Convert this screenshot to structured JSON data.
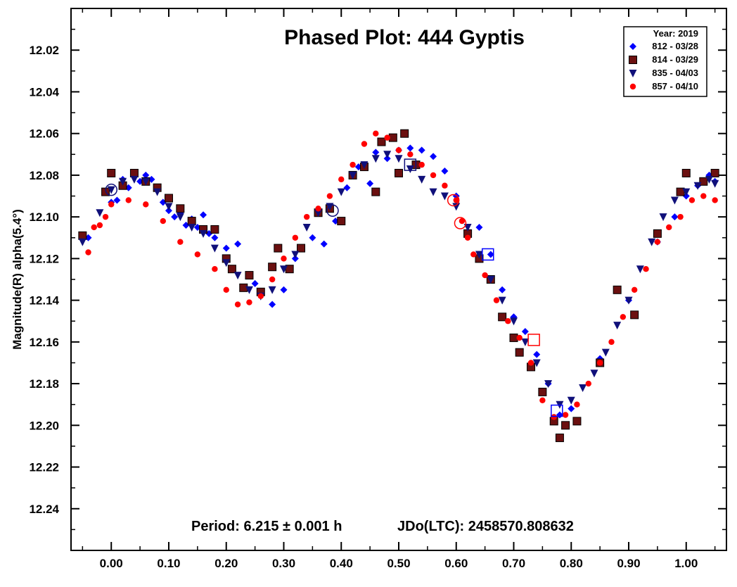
{
  "chart_data": {
    "type": "scatter",
    "title": "Phased Plot: 444 Gyptis",
    "ylabel": "Magnitude(R) alpha(5.4°)",
    "xlabel": "",
    "xlim": [
      -0.07,
      1.07
    ],
    "ylim": [
      12.26,
      12.0
    ],
    "y_inverted": true,
    "x_ticks": [
      "0.00",
      "0.10",
      "0.20",
      "0.30",
      "0.40",
      "0.50",
      "0.60",
      "0.70",
      "0.80",
      "0.90",
      "1.00"
    ],
    "x_tick_values": [
      0,
      0.1,
      0.2,
      0.3,
      0.4,
      0.5,
      0.6,
      0.7,
      0.8,
      0.9,
      1.0
    ],
    "y_ticks": [
      "12.02",
      "12.04",
      "12.06",
      "12.08",
      "12.10",
      "12.12",
      "12.14",
      "12.16",
      "12.18",
      "12.20",
      "12.22",
      "12.24"
    ],
    "y_tick_values": [
      12.02,
      12.04,
      12.06,
      12.08,
      12.1,
      12.12,
      12.14,
      12.16,
      12.18,
      12.2,
      12.22,
      12.24
    ],
    "grid": false,
    "legend_position": "top-right",
    "legend_title": "Year: 2019",
    "footer_period": "Period: 6.215 ± 0.001 h",
    "footer_jd": "JDo(LTC): 2458570.808632",
    "series": [
      {
        "name": "812 - 03/28",
        "marker": "diamond",
        "color": "#0000ff",
        "x": [
          -0.04,
          0.0,
          0.01,
          0.02,
          0.03,
          0.04,
          0.05,
          0.06,
          0.07,
          0.08,
          0.09,
          0.1,
          0.11,
          0.12,
          0.13,
          0.14,
          0.15,
          0.16,
          0.17,
          0.18,
          0.2,
          0.22,
          0.25,
          0.28,
          0.3,
          0.32,
          0.35,
          0.37,
          0.39,
          0.41,
          0.43,
          0.45,
          0.46,
          0.48,
          0.5,
          0.52,
          0.54,
          0.56,
          0.58,
          0.6,
          0.64,
          0.66,
          0.68,
          0.7,
          0.72,
          0.74,
          0.76,
          0.78,
          0.8,
          0.85,
          0.9,
          0.95,
          0.98,
          1.0,
          1.02,
          1.04,
          1.05
        ],
        "y": [
          12.11,
          12.093,
          12.092,
          12.082,
          12.086,
          12.08,
          12.083,
          12.08,
          12.082,
          12.087,
          12.093,
          12.097,
          12.1,
          12.098,
          12.104,
          12.101,
          12.105,
          12.099,
          12.108,
          12.11,
          12.115,
          12.113,
          12.132,
          12.142,
          12.135,
          12.12,
          12.11,
          12.113,
          12.102,
          12.086,
          12.076,
          12.084,
          12.069,
          12.072,
          12.068,
          12.067,
          12.068,
          12.071,
          12.078,
          12.09,
          12.105,
          12.118,
          12.135,
          12.148,
          12.155,
          12.166,
          12.18,
          12.195,
          12.192,
          12.168,
          12.14,
          12.112,
          12.1,
          12.09,
          12.085,
          12.08,
          12.083
        ]
      },
      {
        "name": "814 - 03/29",
        "marker": "square",
        "color": "#6b1010",
        "x": [
          -0.05,
          -0.01,
          0.0,
          0.02,
          0.04,
          0.06,
          0.08,
          0.1,
          0.12,
          0.14,
          0.16,
          0.18,
          0.2,
          0.21,
          0.23,
          0.24,
          0.26,
          0.28,
          0.29,
          0.31,
          0.33,
          0.36,
          0.38,
          0.4,
          0.42,
          0.44,
          0.46,
          0.47,
          0.49,
          0.5,
          0.51,
          0.53,
          0.62,
          0.64,
          0.66,
          0.68,
          0.7,
          0.71,
          0.73,
          0.75,
          0.77,
          0.78,
          0.79,
          0.81,
          0.85,
          0.88,
          0.91,
          0.95,
          0.99,
          1.0,
          1.03,
          1.05
        ],
        "y": [
          12.109,
          12.088,
          12.079,
          12.085,
          12.079,
          12.083,
          12.086,
          12.091,
          12.096,
          12.102,
          12.106,
          12.106,
          12.12,
          12.125,
          12.134,
          12.128,
          12.136,
          12.124,
          12.115,
          12.125,
          12.115,
          12.098,
          12.096,
          12.102,
          12.08,
          12.076,
          12.088,
          12.064,
          12.062,
          12.079,
          12.06,
          12.075,
          12.108,
          12.12,
          12.13,
          12.148,
          12.158,
          12.165,
          12.172,
          12.184,
          12.198,
          12.206,
          12.2,
          12.198,
          12.17,
          12.135,
          12.147,
          12.108,
          12.088,
          12.079,
          12.083,
          12.079
        ]
      },
      {
        "name": "835 - 04/03",
        "marker": "triangle-down",
        "color": "#10107a",
        "x": [
          -0.05,
          -0.02,
          0.0,
          0.02,
          0.04,
          0.06,
          0.08,
          0.1,
          0.12,
          0.14,
          0.16,
          0.18,
          0.2,
          0.22,
          0.24,
          0.26,
          0.28,
          0.3,
          0.32,
          0.34,
          0.36,
          0.38,
          0.4,
          0.42,
          0.44,
          0.46,
          0.48,
          0.5,
          0.52,
          0.54,
          0.56,
          0.58,
          0.6,
          0.62,
          0.64,
          0.66,
          0.68,
          0.7,
          0.72,
          0.74,
          0.76,
          0.78,
          0.8,
          0.82,
          0.84,
          0.86,
          0.88,
          0.9,
          0.92,
          0.94,
          0.96,
          0.98,
          1.0,
          1.02,
          1.04,
          1.05
        ],
        "y": [
          12.112,
          12.098,
          12.087,
          12.083,
          12.082,
          12.083,
          12.088,
          12.095,
          12.1,
          12.105,
          12.108,
          12.115,
          12.122,
          12.128,
          12.135,
          12.138,
          12.135,
          12.125,
          12.118,
          12.105,
          12.098,
          12.095,
          12.088,
          12.08,
          12.075,
          12.072,
          12.07,
          12.072,
          12.077,
          12.082,
          12.088,
          12.09,
          12.095,
          12.105,
          12.118,
          12.13,
          12.14,
          12.15,
          12.16,
          12.17,
          12.18,
          12.19,
          12.188,
          12.182,
          12.175,
          12.165,
          12.152,
          12.14,
          12.125,
          12.112,
          12.1,
          12.092,
          12.088,
          12.085,
          12.082,
          12.084
        ]
      },
      {
        "name": "857 - 04/10",
        "marker": "circle",
        "color": "#ff0000",
        "x": [
          -0.04,
          -0.03,
          -0.02,
          -0.01,
          0.0,
          0.03,
          0.06,
          0.09,
          0.12,
          0.15,
          0.18,
          0.2,
          0.22,
          0.24,
          0.26,
          0.28,
          0.3,
          0.32,
          0.34,
          0.36,
          0.38,
          0.4,
          0.42,
          0.44,
          0.46,
          0.48,
          0.5,
          0.52,
          0.54,
          0.56,
          0.58,
          0.6,
          0.61,
          0.62,
          0.63,
          0.65,
          0.67,
          0.69,
          0.71,
          0.73,
          0.75,
          0.77,
          0.79,
          0.81,
          0.83,
          0.85,
          0.87,
          0.89,
          0.91,
          0.93,
          0.95,
          0.97,
          0.99,
          1.01,
          1.03,
          1.05
        ],
        "y": [
          12.117,
          12.105,
          12.104,
          12.1,
          12.094,
          12.092,
          12.094,
          12.102,
          12.112,
          12.118,
          12.125,
          12.135,
          12.142,
          12.141,
          12.138,
          12.13,
          12.12,
          12.11,
          12.1,
          12.096,
          12.09,
          12.082,
          12.075,
          12.065,
          12.06,
          12.062,
          12.068,
          12.07,
          12.075,
          12.08,
          12.085,
          12.092,
          12.102,
          12.11,
          12.118,
          12.128,
          12.14,
          12.15,
          12.158,
          12.17,
          12.188,
          12.196,
          12.195,
          12.19,
          12.18,
          12.17,
          12.16,
          12.148,
          12.135,
          12.125,
          12.112,
          12.105,
          12.1,
          12.092,
          12.09,
          12.092
        ]
      }
    ],
    "highlighted_points": [
      {
        "marker": "circle",
        "color": "#10107a",
        "x": 0.0,
        "y": 12.087
      },
      {
        "marker": "circle",
        "color": "#10107a",
        "x": 0.385,
        "y": 12.097
      },
      {
        "marker": "square",
        "color": "#10107a",
        "x": 0.52,
        "y": 12.075
      },
      {
        "marker": "circle",
        "color": "#ff0000",
        "x": 0.595,
        "y": 12.092
      },
      {
        "marker": "circle",
        "color": "#ff0000",
        "x": 0.607,
        "y": 12.103
      },
      {
        "marker": "square",
        "color": "#0000ff",
        "x": 0.655,
        "y": 12.118
      },
      {
        "marker": "square",
        "color": "#ff0000",
        "x": 0.735,
        "y": 12.159
      },
      {
        "marker": "square",
        "color": "#0000ff",
        "x": 0.775,
        "y": 12.193
      }
    ]
  }
}
